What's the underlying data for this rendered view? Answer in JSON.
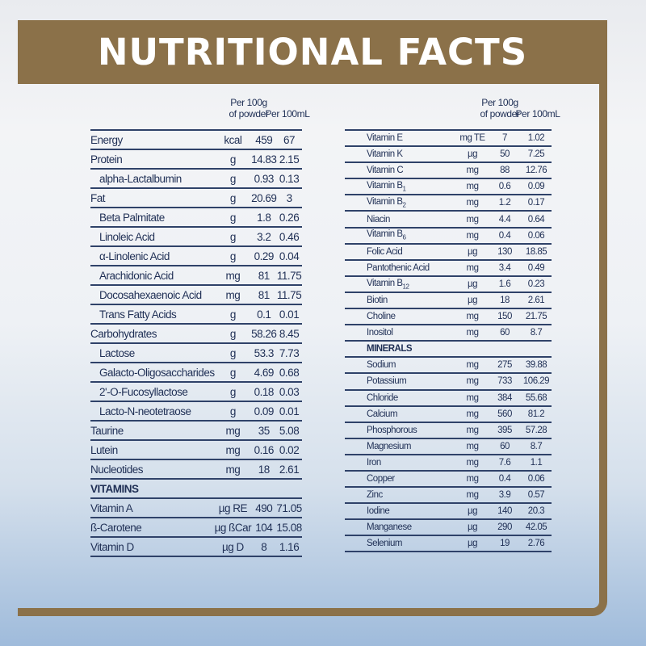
{
  "title": "NUTRITIONAL FACTS",
  "columns": {
    "per100g_line1": "Per 100g",
    "per100g_line2": "of powder",
    "per100ml": "Per 100mL"
  },
  "colors": {
    "brown": "#8b7149",
    "rule": "#2f4269",
    "text": "#1f2f55"
  },
  "left_rows": [
    {
      "name": "Energy",
      "unit": "kcal",
      "v1": "459",
      "v2": "67"
    },
    {
      "name": "Protein",
      "unit": "g",
      "v1": "14.83",
      "v2": "2.15"
    },
    {
      "name": "alpha-Lactalbumin",
      "unit": "g",
      "v1": "0.93",
      "v2": "0.13",
      "indent": true
    },
    {
      "name": "Fat",
      "unit": "g",
      "v1": "20.69",
      "v2": "3"
    },
    {
      "name": "Beta Palmitate",
      "unit": "g",
      "v1": "1.8",
      "v2": "0.26",
      "indent": true
    },
    {
      "name": "Linoleic Acid",
      "unit": "g",
      "v1": "3.2",
      "v2": "0.46",
      "indent": true
    },
    {
      "name": "α-Linolenic Acid",
      "unit": "g",
      "v1": "0.29",
      "v2": "0.04",
      "indent": true
    },
    {
      "name": "Arachidonic Acid",
      "unit": "mg",
      "v1": "81",
      "v2": "11.75",
      "indent": true
    },
    {
      "name": "Docosahexaenoic Acid",
      "unit": "mg",
      "v1": "81",
      "v2": "11.75",
      "indent": true
    },
    {
      "name": "Trans Fatty Acids",
      "unit": "g",
      "v1": "0.1",
      "v2": "0.01",
      "indent": true
    },
    {
      "name": "Carbohydrates",
      "unit": "g",
      "v1": "58.26",
      "v2": "8.45"
    },
    {
      "name": "Lactose",
      "unit": "g",
      "v1": "53.3",
      "v2": "7.73",
      "indent": true
    },
    {
      "name": "Galacto-Oligosaccharides",
      "unit": "g",
      "v1": "4.69",
      "v2": "0.68",
      "indent": true
    },
    {
      "name": "2'-O-Fucosyllactose",
      "unit": "g",
      "v1": "0.18",
      "v2": "0.03",
      "indent": true
    },
    {
      "name": "Lacto-N-neotetraose",
      "unit": "g",
      "v1": "0.09",
      "v2": "0.01",
      "indent": true
    },
    {
      "name": "Taurine",
      "unit": "mg",
      "v1": "35",
      "v2": "5.08"
    },
    {
      "name": "Lutein",
      "unit": "mg",
      "v1": "0.16",
      "v2": "0.02"
    },
    {
      "name": "Nucleotides",
      "unit": "mg",
      "v1": "18",
      "v2": "2.61"
    },
    {
      "name": "VITAMINS",
      "section": true
    },
    {
      "name": "Vitamin A",
      "unit": "µg RE",
      "v1": "490",
      "v2": "71.05"
    },
    {
      "name": "ß-Carotene",
      "unit": "µg ßCar",
      "v1": "104",
      "v2": "15.08"
    },
    {
      "name": "Vitamin D",
      "unit": "µg D",
      "v1": "8",
      "v2": "1.16"
    }
  ],
  "right_rows": [
    {
      "name": "Vitamin E",
      "unit": "mg TE",
      "v1": "7",
      "v2": "1.02"
    },
    {
      "name": "Vitamin K",
      "unit": "µg",
      "v1": "50",
      "v2": "7.25"
    },
    {
      "name": "Vitamin C",
      "unit": "mg",
      "v1": "88",
      "v2": "12.76"
    },
    {
      "name": "Vitamin B",
      "sub": "1",
      "unit": "mg",
      "v1": "0.6",
      "v2": "0.09"
    },
    {
      "name": "Vitamin B",
      "sub": "2",
      "unit": "mg",
      "v1": "1.2",
      "v2": "0.17"
    },
    {
      "name": "Niacin",
      "unit": "mg",
      "v1": "4.4",
      "v2": "0.64"
    },
    {
      "name": "Vitamin B",
      "sub": "6",
      "unit": "mg",
      "v1": "0.4",
      "v2": "0.06"
    },
    {
      "name": "Folic Acid",
      "unit": "µg",
      "v1": "130",
      "v2": "18.85"
    },
    {
      "name": "Pantothenic Acid",
      "unit": "mg",
      "v1": "3.4",
      "v2": "0.49"
    },
    {
      "name": "Vitamin B",
      "sub": "12",
      "unit": "µg",
      "v1": "1.6",
      "v2": "0.23"
    },
    {
      "name": "Biotin",
      "unit": "µg",
      "v1": "18",
      "v2": "2.61"
    },
    {
      "name": "Choline",
      "unit": "mg",
      "v1": "150",
      "v2": "21.75"
    },
    {
      "name": "Inositol",
      "unit": "mg",
      "v1": "60",
      "v2": "8.7"
    },
    {
      "name": "MINERALS",
      "section": true
    },
    {
      "name": "Sodium",
      "unit": "mg",
      "v1": "275",
      "v2": "39.88"
    },
    {
      "name": "Potassium",
      "unit": "mg",
      "v1": "733",
      "v2": "106.29"
    },
    {
      "name": "Chloride",
      "unit": "mg",
      "v1": "384",
      "v2": "55.68"
    },
    {
      "name": "Calcium",
      "unit": "mg",
      "v1": "560",
      "v2": "81.2"
    },
    {
      "name": "Phosphorous",
      "unit": "mg",
      "v1": "395",
      "v2": "57.28"
    },
    {
      "name": "Magnesium",
      "unit": "mg",
      "v1": "60",
      "v2": "8.7"
    },
    {
      "name": "Iron",
      "unit": "mg",
      "v1": "7.6",
      "v2": "1.1"
    },
    {
      "name": "Copper",
      "unit": "mg",
      "v1": "0.4",
      "v2": "0.06"
    },
    {
      "name": "Zinc",
      "unit": "mg",
      "v1": "3.9",
      "v2": "0.57"
    },
    {
      "name": "Iodine",
      "unit": "µg",
      "v1": "140",
      "v2": "20.3"
    },
    {
      "name": "Manganese",
      "unit": "µg",
      "v1": "290",
      "v2": "42.05"
    },
    {
      "name": "Selenium",
      "unit": "µg",
      "v1": "19",
      "v2": "2.76"
    }
  ]
}
